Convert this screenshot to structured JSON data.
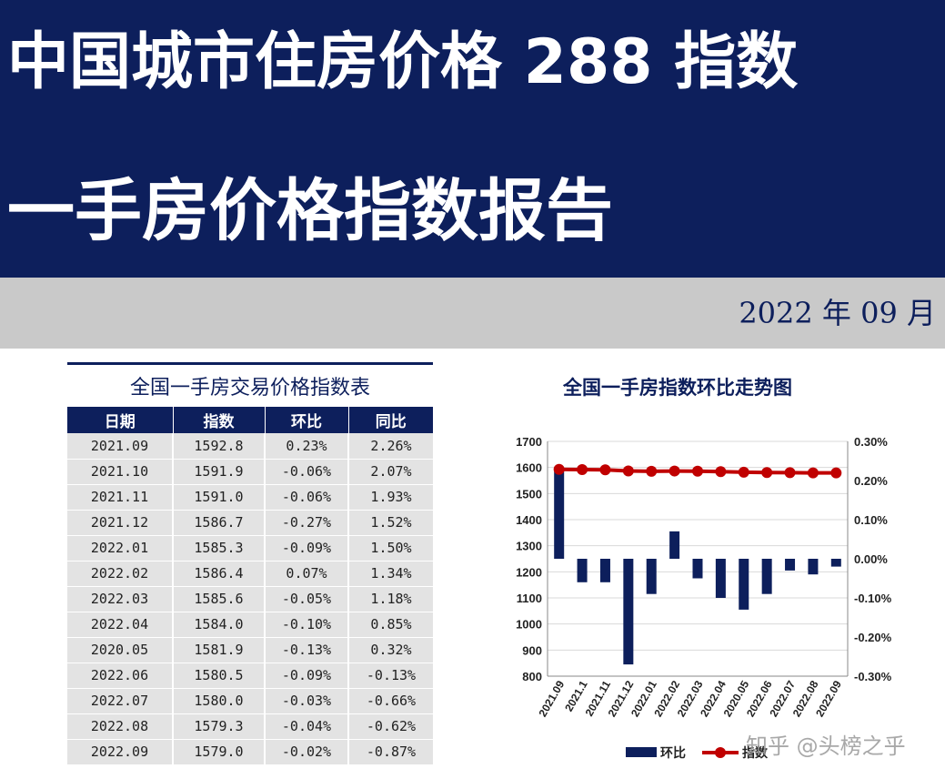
{
  "header": {
    "line1": "中国城市住房价格 288 指数",
    "line2": "一手房价格指数报告",
    "date": "2022 年 09 月"
  },
  "table": {
    "title": "全国一手房交易价格指数表",
    "columns": [
      "日期",
      "指数",
      "环比",
      "同比"
    ],
    "rows": [
      [
        "2021.09",
        "1592.8",
        "0.23%",
        "2.26%"
      ],
      [
        "2021.10",
        "1591.9",
        "-0.06%",
        "2.07%"
      ],
      [
        "2021.11",
        "1591.0",
        "-0.06%",
        "1.93%"
      ],
      [
        "2021.12",
        "1586.7",
        "-0.27%",
        "1.52%"
      ],
      [
        "2022.01",
        "1585.3",
        "-0.09%",
        "1.50%"
      ],
      [
        "2022.02",
        "1586.4",
        "0.07%",
        "1.34%"
      ],
      [
        "2022.03",
        "1585.6",
        "-0.05%",
        "1.18%"
      ],
      [
        "2022.04",
        "1584.0",
        "-0.10%",
        "0.85%"
      ],
      [
        "2020.05",
        "1581.9",
        "-0.13%",
        "0.32%"
      ],
      [
        "2022.06",
        "1580.5",
        "-0.09%",
        "-0.13%"
      ],
      [
        "2022.07",
        "1580.0",
        "-0.03%",
        "-0.66%"
      ],
      [
        "2022.08",
        "1579.3",
        "-0.04%",
        "-0.62%"
      ],
      [
        "2022.09",
        "1579.0",
        "-0.02%",
        "-0.87%"
      ]
    ]
  },
  "chart_data": {
    "type": "bar+line",
    "title": "全国一手房指数环比走势图",
    "categories": [
      "2021.09",
      "2021.1",
      "2021.11",
      "2021.12",
      "2022.01",
      "2022.02",
      "2022.03",
      "2022.04",
      "2020.05",
      "2022.06",
      "2022.07",
      "2022.08",
      "2022.09"
    ],
    "series": [
      {
        "name": "环比",
        "type": "bar",
        "axis": "right",
        "values": [
          0.23,
          -0.06,
          -0.06,
          -0.27,
          -0.09,
          0.07,
          -0.05,
          -0.1,
          -0.13,
          -0.09,
          -0.03,
          -0.04,
          -0.02
        ],
        "color": "#0d1f5c"
      },
      {
        "name": "指数",
        "type": "line",
        "axis": "left",
        "values": [
          1592.8,
          1591.9,
          1591.0,
          1586.7,
          1585.3,
          1586.4,
          1585.6,
          1584.0,
          1581.9,
          1580.5,
          1580.0,
          1579.3,
          1579.0
        ],
        "color": "#c00000"
      }
    ],
    "left_axis": {
      "min": 800,
      "max": 1700,
      "step": 100,
      "ticks": [
        "1700",
        "1600",
        "1500",
        "1400",
        "1300",
        "1200",
        "1100",
        "1000",
        "900",
        "800"
      ]
    },
    "right_axis": {
      "min": -0.3,
      "max": 0.3,
      "step": 0.1,
      "ticks": [
        "0.30%",
        "0.20%",
        "0.10%",
        "0.00%",
        "-0.10%",
        "-0.20%",
        "-0.30%"
      ]
    },
    "grid": true,
    "legend": "bottom"
  },
  "watermark": "知乎 @头榜之乎",
  "colors": {
    "navy": "#0d1f5c",
    "red": "#c00000",
    "band": "#c9c9c9",
    "cell": "#e3e3e3"
  }
}
